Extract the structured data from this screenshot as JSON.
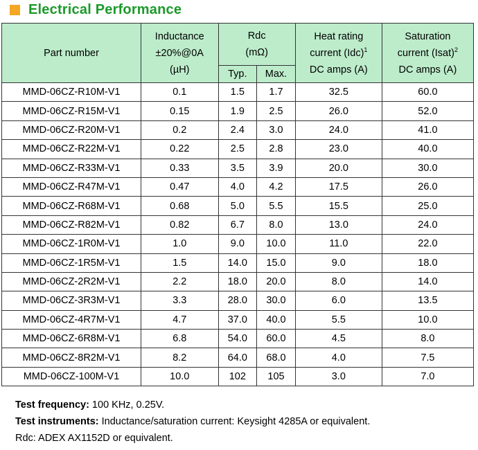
{
  "title": "Electrical Performance",
  "headers": {
    "part_number": "Part number",
    "inductance": [
      "Inductance",
      "±20%@0A",
      "(µH)"
    ],
    "rdc": [
      "Rdc",
      "(mΩ)"
    ],
    "rdc_typ": "Typ.",
    "rdc_max": "Max.",
    "heat": [
      "Heat rating",
      "current (Idc)",
      "DC amps (A)"
    ],
    "heat_sup": "1",
    "sat": [
      "Saturation",
      "current (Isat)",
      "DC amps (A)"
    ],
    "sat_sup": "2"
  },
  "rows": [
    [
      "MMD-06CZ-R10M-V1",
      "0.1",
      "1.5",
      "1.7",
      "32.5",
      "60.0"
    ],
    [
      "MMD-06CZ-R15M-V1",
      "0.15",
      "1.9",
      "2.5",
      "26.0",
      "52.0"
    ],
    [
      "MMD-06CZ-R20M-V1",
      "0.2",
      "2.4",
      "3.0",
      "24.0",
      "41.0"
    ],
    [
      "MMD-06CZ-R22M-V1",
      "0.22",
      "2.5",
      "2.8",
      "23.0",
      "40.0"
    ],
    [
      "MMD-06CZ-R33M-V1",
      "0.33",
      "3.5",
      "3.9",
      "20.0",
      "30.0"
    ],
    [
      "MMD-06CZ-R47M-V1",
      "0.47",
      "4.0",
      "4.2",
      "17.5",
      "26.0"
    ],
    [
      "MMD-06CZ-R68M-V1",
      "0.68",
      "5.0",
      "5.5",
      "15.5",
      "25.0"
    ],
    [
      "MMD-06CZ-R82M-V1",
      "0.82",
      "6.7",
      "8.0",
      "13.0",
      "24.0"
    ],
    [
      "MMD-06CZ-1R0M-V1",
      "1.0",
      "9.0",
      "10.0",
      "11.0",
      "22.0"
    ],
    [
      "MMD-06CZ-1R5M-V1",
      "1.5",
      "14.0",
      "15.0",
      "9.0",
      "18.0"
    ],
    [
      "MMD-06CZ-2R2M-V1",
      "2.2",
      "18.0",
      "20.0",
      "8.0",
      "14.0"
    ],
    [
      "MMD-06CZ-3R3M-V1",
      "3.3",
      "28.0",
      "30.0",
      "6.0",
      "13.5"
    ],
    [
      "MMD-06CZ-4R7M-V1",
      "4.7",
      "37.0",
      "40.0",
      "5.5",
      "10.0"
    ],
    [
      "MMD-06CZ-6R8M-V1",
      "6.8",
      "54.0",
      "60.0",
      "4.5",
      "8.0"
    ],
    [
      "MMD-06CZ-8R2M-V1",
      "8.2",
      "64.0",
      "68.0",
      "4.0",
      "7.5"
    ],
    [
      "MMD-06CZ-100M-V1",
      "10.0",
      "102",
      "105",
      "3.0",
      "7.0"
    ]
  ],
  "notes": {
    "freq_label": "Test frequency:",
    "freq_value": " 100 KHz, 0.25V.",
    "instr_label": "Test instruments:",
    "instr_value": " Inductance/saturation current: Keysight 4285A or equivalent.",
    "rdc_line": "Rdc: ADEX AX1152D or equivalent."
  },
  "colors": {
    "title": "#1a9a2a",
    "square": "#f5a623",
    "header_bg": "#bdeccb"
  }
}
